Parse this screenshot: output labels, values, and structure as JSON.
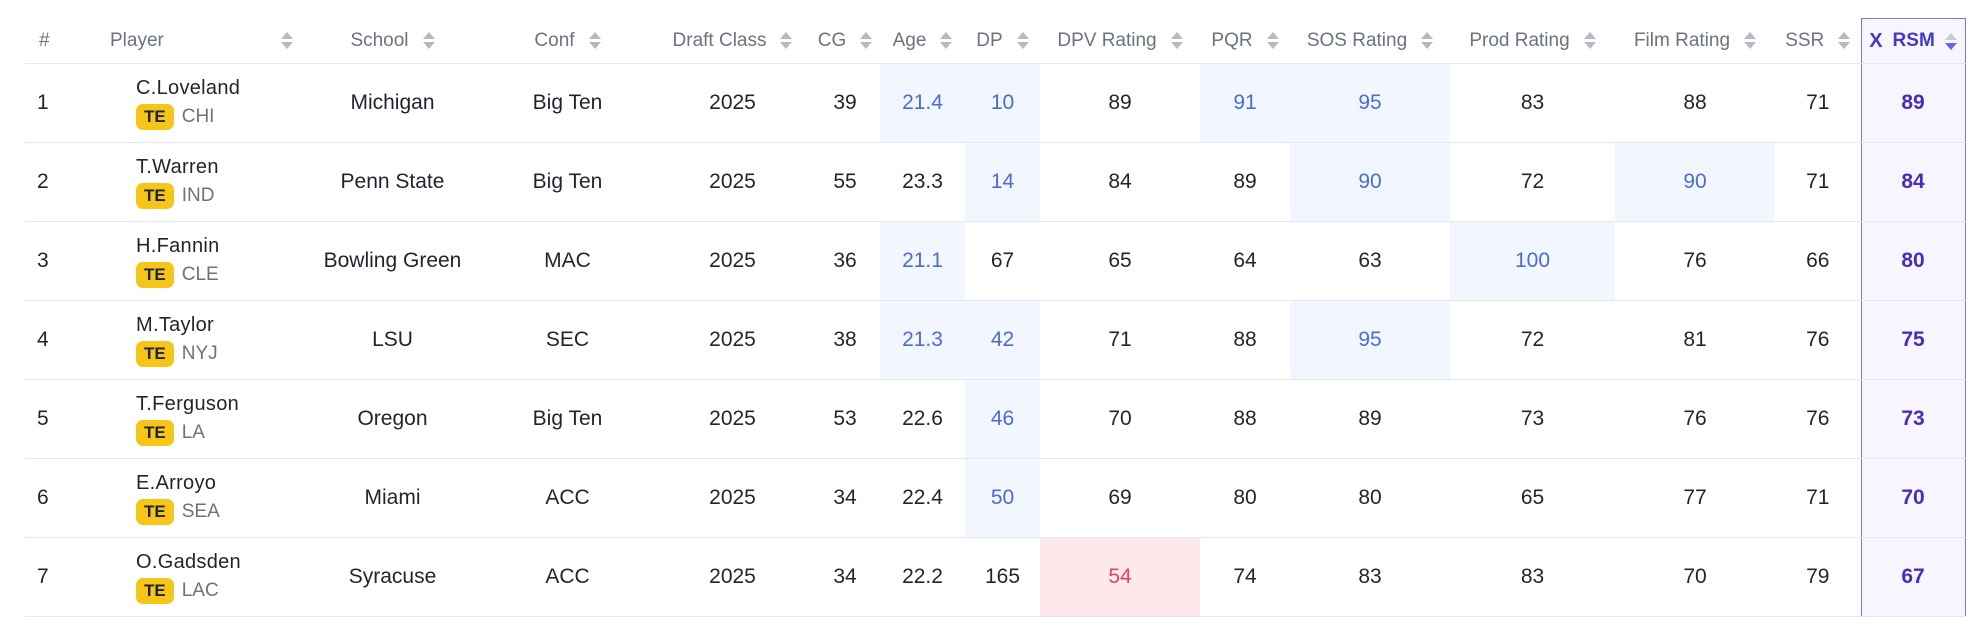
{
  "columns": {
    "rank": "#",
    "player": "Player",
    "school": "School",
    "conf": "Conf",
    "draft_class": "Draft Class",
    "cg": "CG",
    "age": "Age",
    "dp": "DP",
    "dpv": "DPV Rating",
    "pqr": "PQR",
    "sos": "SOS Rating",
    "prod": "Prod Rating",
    "film": "Film Rating",
    "ssr": "SSR",
    "rsm": "RSM"
  },
  "rsm_icon": "X",
  "colors": {
    "position_badge": "#f5c518",
    "highlight_good": "#4a6cd4",
    "highlight_bad": "#e0465f",
    "rsm_accent": "#4338ca"
  },
  "rows": [
    {
      "rank": "1",
      "name": "C.Loveland",
      "pos": "TE",
      "team": "CHI",
      "school": "Michigan",
      "conf": "Big Ten",
      "draft_class": "2025",
      "cg": "39",
      "age": "21.4",
      "dp": "10",
      "dpv": "89",
      "pqr": "91",
      "sos": "95",
      "prod": "83",
      "film": "88",
      "ssr": "71",
      "rsm": "89",
      "hl": [
        "age",
        "dp",
        "pqr",
        "sos"
      ],
      "bad": []
    },
    {
      "rank": "2",
      "name": "T.Warren",
      "pos": "TE",
      "team": "IND",
      "school": "Penn State",
      "conf": "Big Ten",
      "draft_class": "2025",
      "cg": "55",
      "age": "23.3",
      "dp": "14",
      "dpv": "84",
      "pqr": "89",
      "sos": "90",
      "prod": "72",
      "film": "90",
      "ssr": "71",
      "rsm": "84",
      "hl": [
        "dp",
        "sos",
        "film"
      ],
      "bad": []
    },
    {
      "rank": "3",
      "name": "H.Fannin",
      "pos": "TE",
      "team": "CLE",
      "school": "Bowling Green",
      "conf": "MAC",
      "draft_class": "2025",
      "cg": "36",
      "age": "21.1",
      "dp": "67",
      "dpv": "65",
      "pqr": "64",
      "sos": "63",
      "prod": "100",
      "film": "76",
      "ssr": "66",
      "rsm": "80",
      "hl": [
        "age",
        "prod"
      ],
      "bad": []
    },
    {
      "rank": "4",
      "name": "M.Taylor",
      "pos": "TE",
      "team": "NYJ",
      "school": "LSU",
      "conf": "SEC",
      "draft_class": "2025",
      "cg": "38",
      "age": "21.3",
      "dp": "42",
      "dpv": "71",
      "pqr": "88",
      "sos": "95",
      "prod": "72",
      "film": "81",
      "ssr": "76",
      "rsm": "75",
      "hl": [
        "age",
        "dp",
        "sos"
      ],
      "bad": []
    },
    {
      "rank": "5",
      "name": "T.Ferguson",
      "pos": "TE",
      "team": "LA",
      "school": "Oregon",
      "conf": "Big Ten",
      "draft_class": "2025",
      "cg": "53",
      "age": "22.6",
      "dp": "46",
      "dpv": "70",
      "pqr": "88",
      "sos": "89",
      "prod": "73",
      "film": "76",
      "ssr": "76",
      "rsm": "73",
      "hl": [
        "dp"
      ],
      "bad": []
    },
    {
      "rank": "6",
      "name": "E.Arroyo",
      "pos": "TE",
      "team": "SEA",
      "school": "Miami",
      "conf": "ACC",
      "draft_class": "2025",
      "cg": "34",
      "age": "22.4",
      "dp": "50",
      "dpv": "69",
      "pqr": "80",
      "sos": "80",
      "prod": "65",
      "film": "77",
      "ssr": "71",
      "rsm": "70",
      "hl": [
        "dp"
      ],
      "bad": []
    },
    {
      "rank": "7",
      "name": "O.Gadsden",
      "pos": "TE",
      "team": "LAC",
      "school": "Syracuse",
      "conf": "ACC",
      "draft_class": "2025",
      "cg": "34",
      "age": "22.2",
      "dp": "165",
      "dpv": "54",
      "pqr": "74",
      "sos": "83",
      "prod": "83",
      "film": "70",
      "ssr": "79",
      "rsm": "67",
      "hl": [],
      "bad": [
        "dpv"
      ]
    }
  ]
}
